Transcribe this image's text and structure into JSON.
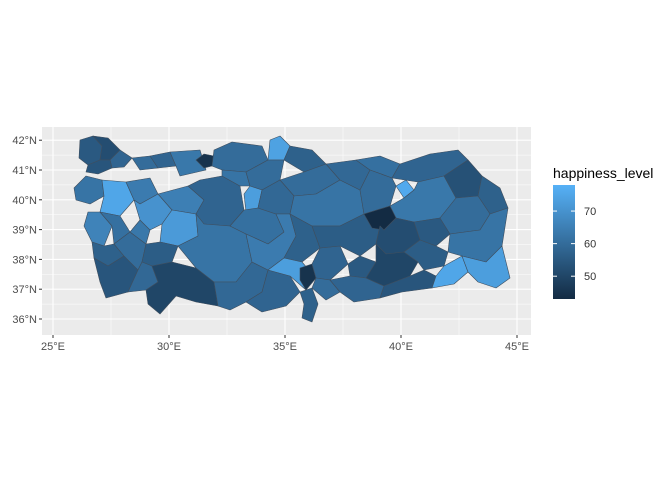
{
  "map": {
    "type": "choropleth",
    "region": "Turkey provinces",
    "x_axis": {
      "ticks": [
        "25°E",
        "30°E",
        "35°E",
        "40°E",
        "45°E"
      ],
      "values": [
        25,
        30,
        35,
        40,
        45
      ]
    },
    "y_axis": {
      "ticks": [
        "36°N",
        "37°N",
        "38°N",
        "39°N",
        "40°N",
        "41°N",
        "42°N"
      ],
      "values": [
        36,
        37,
        38,
        39,
        40,
        41,
        42
      ]
    },
    "panel_background": "#ebebeb",
    "grid_color": "#ffffff"
  },
  "legend": {
    "title": "happiness_level",
    "ticks": [
      "70",
      "60",
      "50"
    ],
    "tick_values": [
      70,
      60,
      50
    ],
    "range": [
      43,
      78
    ],
    "color_low": "#132b43",
    "color_high": "#56b1f7"
  }
}
